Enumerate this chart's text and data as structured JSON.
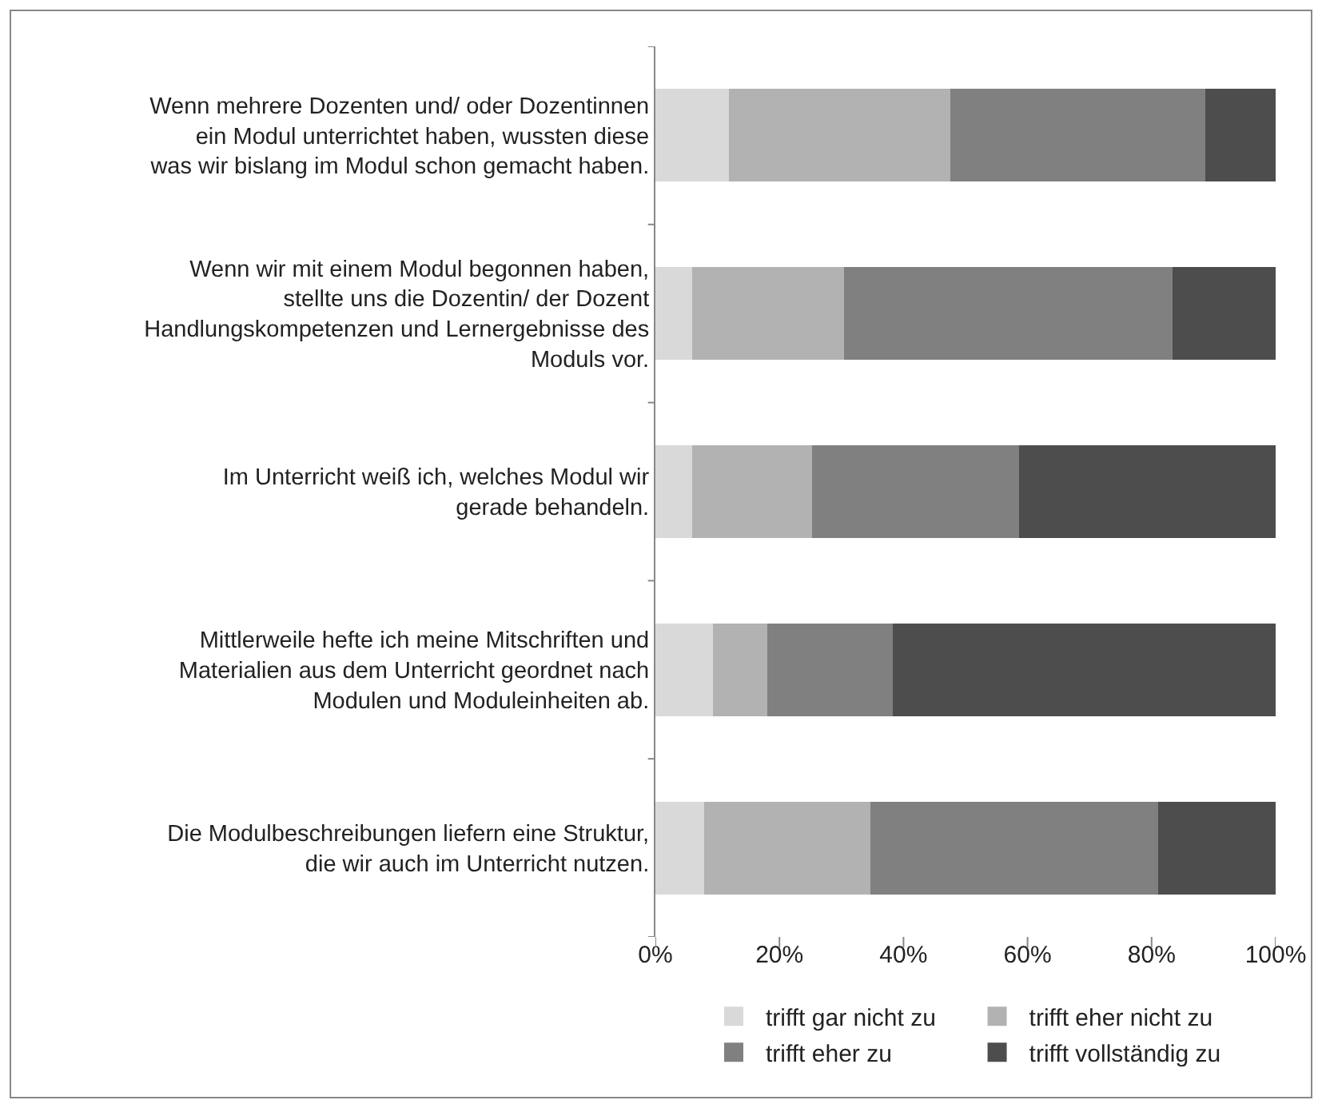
{
  "chart_data": {
    "type": "bar",
    "orientation": "horizontal",
    "stacked": true,
    "categories": [
      "Wenn mehrere Dozenten und/ oder Dozentinnen ein Modul unterrichtet haben, wussten diese was wir bislang im Modul schon gemacht haben.",
      "Wenn wir mit einem Modul begonnen haben, stellte uns die Dozentin/ der Dozent Handlungskompetenzen und Lernergebnisse des Moduls vor.",
      "Im Unterricht weiß ich, welches Modul wir gerade behandeln.",
      "Mittlerweile hefte ich meine Mitschriften und Materialien aus dem Unterricht geordnet nach Modulen und Moduleinheiten ab.",
      "Die Modulbeschreibungen liefern eine Struktur, die wir auch im Unterricht nutzen."
    ],
    "series": [
      {
        "name": "trifft gar nicht zu",
        "color": "#d9d9d9",
        "values": [
          11.9,
          5.9,
          5.9,
          9.3,
          7.8
        ]
      },
      {
        "name": "trifft eher nicht zu",
        "color": "#b2b2b2",
        "values": [
          35.7,
          24.5,
          19.4,
          8.8,
          26.9
        ]
      },
      {
        "name": "trifft eher zu",
        "color": "#808080",
        "values": [
          41.1,
          53.0,
          33.3,
          20.2,
          46.3
        ]
      },
      {
        "name": "trifft vollständig zu",
        "color": "#4d4d4d",
        "values": [
          11.3,
          16.6,
          41.4,
          61.7,
          19.0
        ]
      }
    ],
    "xlim": [
      0,
      100
    ],
    "xticks": [
      {
        "value": 0,
        "label": "0%"
      },
      {
        "value": 20,
        "label": "20%"
      },
      {
        "value": 40,
        "label": "40%"
      },
      {
        "value": 60,
        "label": "60%"
      },
      {
        "value": 80,
        "label": "80%"
      },
      {
        "value": 100,
        "label": "100%"
      }
    ],
    "grid": false,
    "legend": "bottom"
  }
}
